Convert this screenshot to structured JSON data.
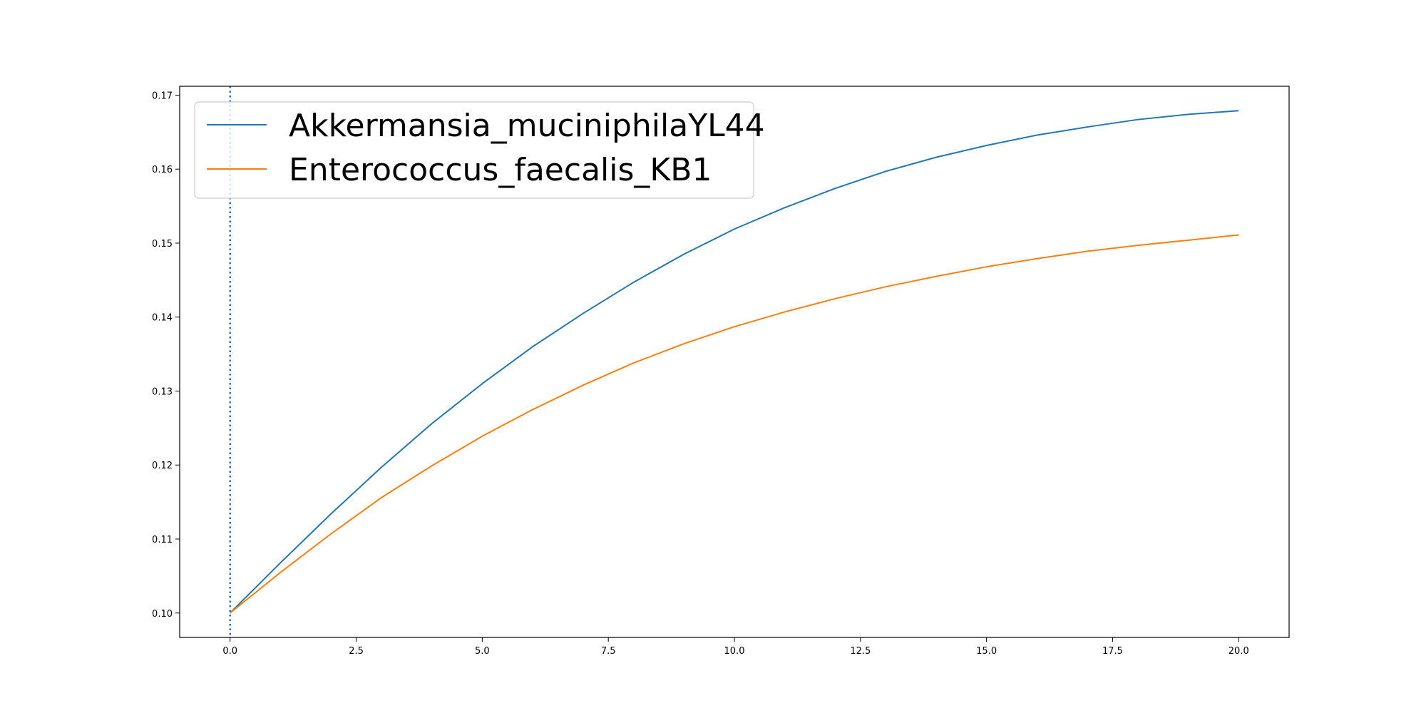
{
  "chart_data": {
    "type": "line",
    "title": "",
    "xlabel": "",
    "ylabel": "",
    "xlim": [
      -1.0,
      21.0
    ],
    "ylim": [
      0.0967,
      0.1712
    ],
    "xticks": [
      0.0,
      2.5,
      5.0,
      7.5,
      10.0,
      12.5,
      15.0,
      17.5,
      20.0
    ],
    "xtick_labels": [
      "0.0",
      "2.5",
      "5.0",
      "7.5",
      "10.0",
      "12.5",
      "15.0",
      "17.5",
      "20.0"
    ],
    "yticks": [
      0.1,
      0.11,
      0.12,
      0.13,
      0.14,
      0.15,
      0.16,
      0.17
    ],
    "ytick_labels": [
      "0.10",
      "0.11",
      "0.12",
      "0.13",
      "0.14",
      "0.15",
      "0.16",
      "0.17"
    ],
    "grid": false,
    "legend_position": "top-left",
    "vertical_lines": [
      {
        "x": 0.0,
        "style": "dotted",
        "color": "#1f77b4"
      }
    ],
    "series": [
      {
        "name": "Akkermansia_muciniphilaYL44",
        "color": "#1f77b4",
        "x": [
          0,
          1,
          2,
          3,
          4,
          5,
          6,
          7,
          8,
          9,
          10,
          11,
          12,
          13,
          14,
          15,
          16,
          17,
          18,
          19,
          20
        ],
        "y": [
          0.1,
          0.1068,
          0.1134,
          0.1197,
          0.1256,
          0.131,
          0.136,
          0.1405,
          0.1447,
          0.1485,
          0.1519,
          0.1548,
          0.1574,
          0.1597,
          0.1616,
          0.1632,
          0.1646,
          0.1657,
          0.1667,
          0.1674,
          0.1679
        ]
      },
      {
        "name": "Enterococcus_faecalis_KB1",
        "color": "#ff7f0e",
        "x": [
          0,
          1,
          2,
          3,
          4,
          5,
          6,
          7,
          8,
          9,
          10,
          11,
          12,
          13,
          14,
          15,
          16,
          17,
          18,
          19,
          20
        ],
        "y": [
          0.1,
          0.1055,
          0.1107,
          0.1156,
          0.1199,
          0.1239,
          0.1275,
          0.1308,
          0.1338,
          0.1364,
          0.1387,
          0.1407,
          0.1425,
          0.1441,
          0.1455,
          0.1468,
          0.1479,
          0.1489,
          0.1497,
          0.1504,
          0.1511
        ]
      }
    ]
  }
}
